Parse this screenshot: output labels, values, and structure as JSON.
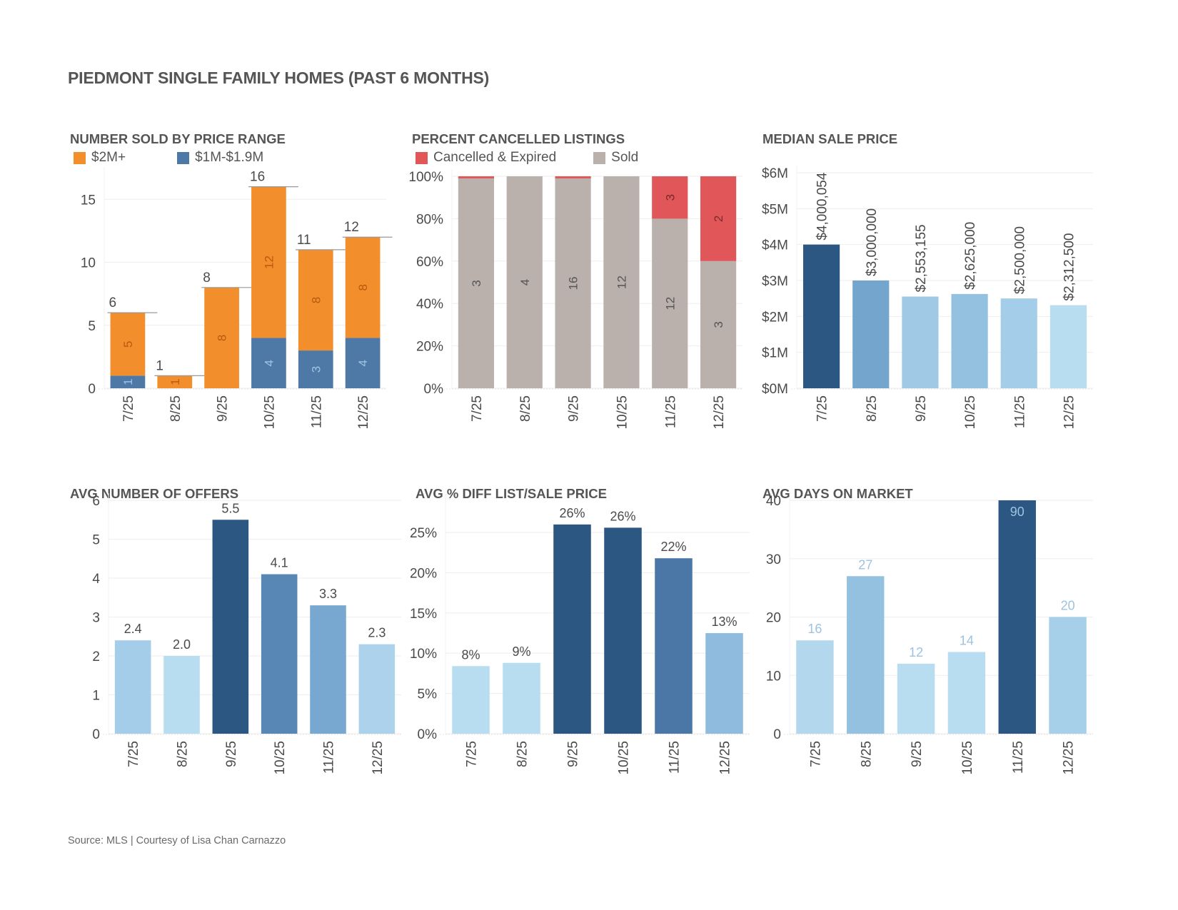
{
  "page": {
    "title": "PIEDMONT SINGLE FAMILY HOMES (PAST 6 MONTHS)",
    "source": "Source: MLS | Courtesy of Lisa Chan Carnazzo"
  },
  "chart_data": [
    {
      "id": "sold-by-price",
      "type": "bar",
      "stacked": true,
      "title": "NUMBER SOLD BY PRICE RANGE",
      "categories": [
        "7/25",
        "8/25",
        "9/25",
        "10/25",
        "11/25",
        "12/25"
      ],
      "series": [
        {
          "name": "$1M-$1.9M",
          "color": "#4e79a7",
          "label_color": "#9dc3e6",
          "values": [
            1,
            0,
            0,
            4,
            3,
            4
          ],
          "labels": [
            "1",
            "",
            "",
            "4",
            "3",
            "4"
          ]
        },
        {
          "name": "$2M+",
          "color": "#f28e2b",
          "label_color": "#b85a10",
          "values": [
            5,
            1,
            8,
            12,
            8,
            8
          ],
          "labels": [
            "5",
            "1",
            "8",
            "12",
            "8",
            "8"
          ]
        }
      ],
      "totals": [
        6,
        1,
        8,
        16,
        11,
        12
      ],
      "yticks": [
        0,
        5,
        10,
        15
      ],
      "ytick_labels": [
        "0",
        "5",
        "10",
        "15"
      ],
      "ylim": [
        0,
        17
      ],
      "legend": [
        {
          "name": "$2M+",
          "color": "#f28e2b"
        },
        {
          "name": "$1M-$1.9M",
          "color": "#4e79a7"
        }
      ],
      "legend_position": "top-left",
      "grid": true
    },
    {
      "id": "percent-cancelled",
      "type": "bar",
      "stacked": true,
      "percent": true,
      "title": "PERCENT CANCELLED LISTINGS",
      "categories": [
        "7/25",
        "8/25",
        "9/25",
        "10/25",
        "11/25",
        "12/25"
      ],
      "series": [
        {
          "name": "Sold",
          "color": "#bab0ac",
          "label_color": "#555555",
          "values": [
            99,
            100,
            99,
            100,
            80,
            60
          ],
          "labels": [
            "3",
            "4",
            "16",
            "12",
            "12",
            "3"
          ]
        },
        {
          "name": "Cancelled & Expired",
          "color": "#e15759",
          "label_color": "#7a2a2a",
          "values": [
            1,
            0,
            1,
            0,
            20,
            40
          ],
          "labels": [
            "",
            "",
            "",
            "",
            "3",
            "2"
          ]
        }
      ],
      "yticks": [
        0,
        20,
        40,
        60,
        80,
        100
      ],
      "ytick_labels": [
        "0%",
        "20%",
        "40%",
        "60%",
        "80%",
        "100%"
      ],
      "ylim": [
        0,
        100
      ],
      "legend": [
        {
          "name": "Cancelled & Expired",
          "color": "#e15759"
        },
        {
          "name": "Sold",
          "color": "#bab0ac"
        }
      ],
      "legend_position": "top-left",
      "grid": true
    },
    {
      "id": "median-sale-price",
      "type": "bar",
      "title": "MEDIAN SALE PRICE",
      "categories": [
        "7/25",
        "8/25",
        "9/25",
        "10/25",
        "11/25",
        "12/25"
      ],
      "values": [
        4000054,
        3000000,
        2553155,
        2625000,
        2500000,
        2312500
      ],
      "value_labels": [
        "$4,000,054",
        "$3,000,000",
        "$2,553,155",
        "$2,625,000",
        "$2,500,000",
        "$2,312,500"
      ],
      "colors": [
        "#2c5782",
        "#74a6cd",
        "#a0c9e6",
        "#93c1df",
        "#a3cde9",
        "#b8dcf0"
      ],
      "label_rotated": true,
      "yticks": [
        0,
        1000000,
        2000000,
        3000000,
        4000000,
        5000000,
        6000000
      ],
      "ytick_labels": [
        "$0M",
        "$1M",
        "$2M",
        "$3M",
        "$4M",
        "$5M",
        "$6M"
      ],
      "ylim": [
        0,
        6000000
      ],
      "grid": true
    },
    {
      "id": "avg-offers",
      "type": "bar",
      "title": "AVG NUMBER OF OFFERS",
      "categories": [
        "7/25",
        "8/25",
        "9/25",
        "10/25",
        "11/25",
        "12/25"
      ],
      "values": [
        2.4,
        2.0,
        5.5,
        4.1,
        3.3,
        2.3
      ],
      "value_labels": [
        "2.4",
        "2.0",
        "5.5",
        "4.1",
        "3.3",
        "2.3"
      ],
      "colors": [
        "#a3cde9",
        "#b8dcf0",
        "#2c5782",
        "#5887b5",
        "#78a8cf",
        "#acd2ec"
      ],
      "label_color": "#4a4a4a",
      "yticks": [
        0,
        1,
        2,
        3,
        4,
        5,
        6
      ],
      "ytick_labels": [
        "0",
        "1",
        "2",
        "3",
        "4",
        "5",
        "6"
      ],
      "ylim": [
        0,
        6
      ],
      "grid": true
    },
    {
      "id": "avg-pct-diff",
      "type": "bar",
      "title": "AVG % DIFF LIST/SALE PRICE",
      "categories": [
        "7/25",
        "8/25",
        "9/25",
        "10/25",
        "11/25",
        "12/25"
      ],
      "values": [
        8.4,
        8.8,
        26.0,
        25.6,
        21.8,
        12.5
      ],
      "value_labels": [
        "8%",
        "9%",
        "26%",
        "26%",
        "22%",
        "13%"
      ],
      "colors": [
        "#b8dcf0",
        "#b8dcf0",
        "#2c5782",
        "#2c5782",
        "#4a77a6",
        "#8fbcde"
      ],
      "label_color": "#4a4a4a",
      "yticks": [
        0,
        5,
        10,
        15,
        20,
        25
      ],
      "ytick_labels": [
        "0%",
        "5%",
        "10%",
        "15%",
        "20%",
        "25%"
      ],
      "ylim": [
        0,
        29
      ],
      "grid": true
    },
    {
      "id": "avg-days-on-market",
      "type": "bar",
      "title": "AVG DAYS ON MARKET",
      "categories": [
        "7/25",
        "8/25",
        "9/25",
        "10/25",
        "11/25",
        "12/25"
      ],
      "values": [
        16,
        27,
        12,
        14,
        90,
        20
      ],
      "value_labels": [
        "16",
        "27",
        "12",
        "14",
        "90",
        "20"
      ],
      "colors": [
        "#b3d8ee",
        "#93c1df",
        "#b8dcf0",
        "#b8dcf0",
        "#2c5782",
        "#a6cfea"
      ],
      "label_color": "#9dc3e0",
      "label_inside_when_clipped": true,
      "yticks": [
        0,
        10,
        20,
        30,
        40
      ],
      "ytick_labels": [
        "0",
        "10",
        "20",
        "30",
        "40"
      ],
      "ylim": [
        0,
        40
      ],
      "clipped": true,
      "grid": true
    }
  ]
}
